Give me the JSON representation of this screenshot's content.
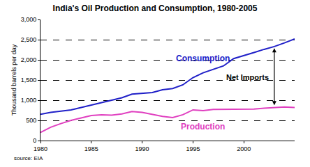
{
  "chart_data": {
    "type": "line",
    "title": "India's Oil Production and Consumption, 1980-2005",
    "y_label": "Thousand barrels per day",
    "source": "source: EIA",
    "annotations": [
      "Net Imports"
    ],
    "x": [
      1980,
      1981,
      1982,
      1983,
      1984,
      1985,
      1986,
      1987,
      1988,
      1989,
      1990,
      1991,
      1992,
      1993,
      1994,
      1995,
      1996,
      1997,
      1998,
      1999,
      2000,
      2001,
      2002,
      2003,
      2004,
      2005
    ],
    "series": [
      {
        "name": "Consumption",
        "color": "#2020c8",
        "values": [
          650,
          700,
          730,
          760,
          820,
          880,
          930,
          990,
          1060,
          1150,
          1170,
          1190,
          1260,
          1290,
          1380,
          1560,
          1680,
          1760,
          1850,
          2030,
          2100,
          2180,
          2260,
          2330,
          2420,
          2520
        ]
      },
      {
        "name": "Production",
        "color": "#e040c0",
        "values": [
          200,
          330,
          420,
          500,
          560,
          620,
          640,
          630,
          660,
          720,
          700,
          650,
          600,
          570,
          640,
          760,
          740,
          770,
          770,
          770,
          770,
          780,
          800,
          810,
          830,
          820
        ]
      }
    ],
    "xlim": [
      1980,
      2005
    ],
    "xticks": [
      1980,
      1985,
      1990,
      1995,
      2000
    ],
    "ylim": [
      0,
      3000
    ],
    "yticks": [
      0,
      500,
      {
        "value": 1000,
        "label": "1,000"
      },
      {
        "value": 1500,
        "label": "1,500"
      },
      {
        "value": 2000,
        "label": "2,000"
      },
      {
        "value": 2500,
        "label": "2,500"
      },
      {
        "value": 3000,
        "label": "3,000"
      }
    ],
    "grid": true
  }
}
